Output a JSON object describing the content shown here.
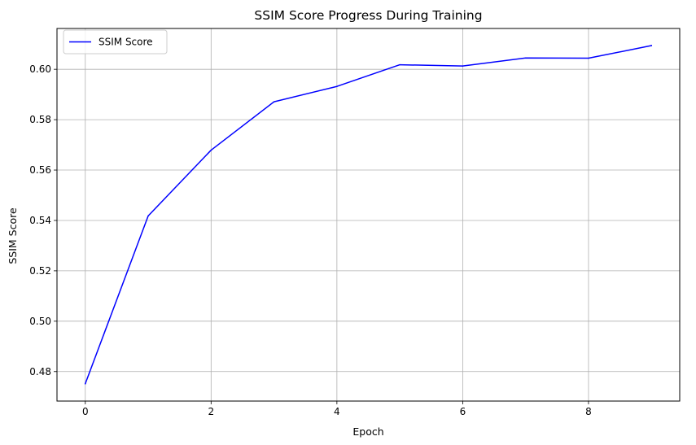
{
  "chart_data": {
    "type": "line",
    "title": "SSIM Score Progress During Training",
    "xlabel": "Epoch",
    "ylabel": "SSIM Score",
    "xlim": [
      -0.45,
      9.45
    ],
    "ylim": [
      0.4683,
      0.6162
    ],
    "x_ticks": [
      0,
      2,
      4,
      6,
      8
    ],
    "y_ticks": [
      0.48,
      0.5,
      0.52,
      0.54,
      0.56,
      0.58,
      0.6
    ],
    "x_tick_labels": [
      "0",
      "2",
      "4",
      "6",
      "8"
    ],
    "y_tick_labels": [
      "0.48",
      "0.50",
      "0.52",
      "0.54",
      "0.56",
      "0.58",
      "0.60"
    ],
    "grid": true,
    "legend_position": "top-left",
    "series": [
      {
        "name": "SSIM Score",
        "color": "#0000ff",
        "x": [
          0,
          1,
          2,
          3,
          4,
          5,
          6,
          7,
          8,
          9
        ],
        "y": [
          0.4752,
          0.5418,
          0.5679,
          0.5871,
          0.5932,
          0.6018,
          0.6013,
          0.6045,
          0.6044,
          0.6094
        ]
      }
    ]
  }
}
